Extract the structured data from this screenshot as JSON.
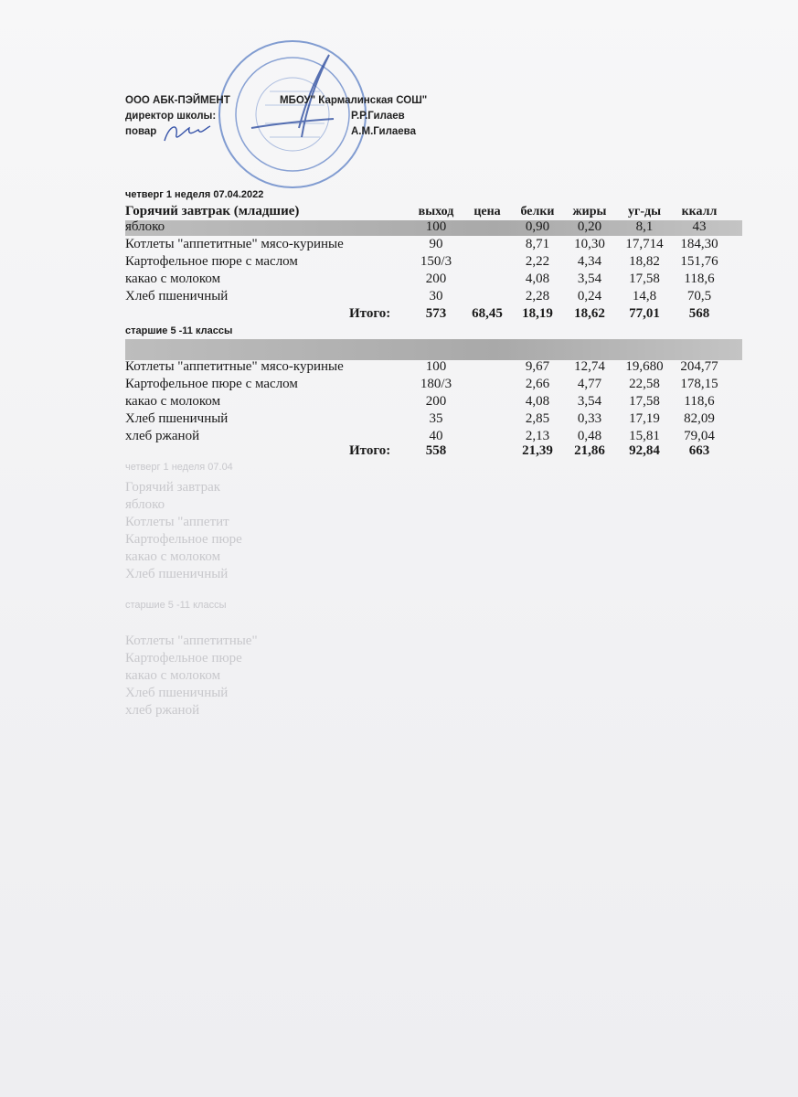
{
  "header": {
    "company": "ООО АБК-ПЭЙМЕНТ",
    "school": "МБОУ\" Кармалинская СОШ\"",
    "director_label": "директор школы:",
    "director_name": "Р.Р.Гилаев",
    "cook_label": "повар",
    "cook_name": "А.М.Гилаева"
  },
  "date_line": "четверг 1 неделя  07.04.2022",
  "columns": [
    "выход",
    "цена",
    "белки",
    "жиры",
    "уг-ды",
    "ккалл"
  ],
  "junior": {
    "title": "Горячий завтрак (младшие)",
    "rows": [
      {
        "name": "яблоко",
        "out": "100",
        "price": "",
        "prot": "0,90",
        "fat": "0,20",
        "carb": "8,1",
        "kcal": "43"
      },
      {
        "name": "Котлеты \"аппетитные\" мясо-куриные",
        "out": "90",
        "price": "",
        "prot": "8,71",
        "fat": "10,30",
        "carb": "17,714",
        "kcal": "184,30"
      },
      {
        "name": "Картофельное пюре с маслом",
        "out": "150/3",
        "price": "",
        "prot": "2,22",
        "fat": "4,34",
        "carb": "18,82",
        "kcal": "151,76"
      },
      {
        "name": "какао с молоком",
        "out": "200",
        "price": "",
        "prot": "4,08",
        "fat": "3,54",
        "carb": "17,58",
        "kcal": "118,6"
      },
      {
        "name": "Хлеб пшеничный",
        "out": "30",
        "price": "",
        "prot": "2,28",
        "fat": "0,24",
        "carb": "14,8",
        "kcal": "70,5"
      }
    ],
    "total": {
      "label": "Итого:",
      "out": "573",
      "price": "68,45",
      "prot": "18,19",
      "fat": "18,62",
      "carb": "77,01",
      "kcal": "568"
    }
  },
  "senior": {
    "title": "старшие 5 -11 классы",
    "rows": [
      {
        "name": "Котлеты \"аппетитные\" мясо-куриные",
        "out": "100",
        "price": "",
        "prot": "9,67",
        "fat": "12,74",
        "carb": "19,680",
        "kcal": "204,77"
      },
      {
        "name": "Картофельное пюре с маслом",
        "out": "180/3",
        "price": "",
        "prot": "2,66",
        "fat": "4,77",
        "carb": "22,58",
        "kcal": "178,15"
      },
      {
        "name": "какао с молоком",
        "out": "200",
        "price": "",
        "prot": "4,08",
        "fat": "3,54",
        "carb": "17,58",
        "kcal": "118,6"
      },
      {
        "name": "Хлеб пшеничный",
        "out": "35",
        "price": "",
        "prot": "2,85",
        "fat": "0,33",
        "carb": "17,19",
        "kcal": "82,09"
      },
      {
        "name": "хлеб ржаной",
        "out": "40",
        "price": "",
        "prot": "2,13",
        "fat": "0,48",
        "carb": "15,81",
        "kcal": "79,04"
      }
    ],
    "total": {
      "label": "Итого:",
      "out": "558",
      "price": "",
      "prot": "21,39",
      "fat": "21,86",
      "carb": "92,84",
      "kcal": "663"
    }
  },
  "ghost_lines": [
    "четверг 1 неделя  07.04",
    "Горячий завтрак",
    "яблоко",
    "Котлеты \"аппетит",
    "Картофельное пюре",
    "какао с молоком",
    "Хлеб пшеничный",
    "старшие 5 -11 классы",
    "Котлеты \"аппетитные\"",
    "Картофельное пюре",
    "какао с молоком",
    "Хлеб пшеничный",
    "хлеб ржаной"
  ],
  "stamp_color": "#3d63b8",
  "band_color": "#b0b0b0"
}
